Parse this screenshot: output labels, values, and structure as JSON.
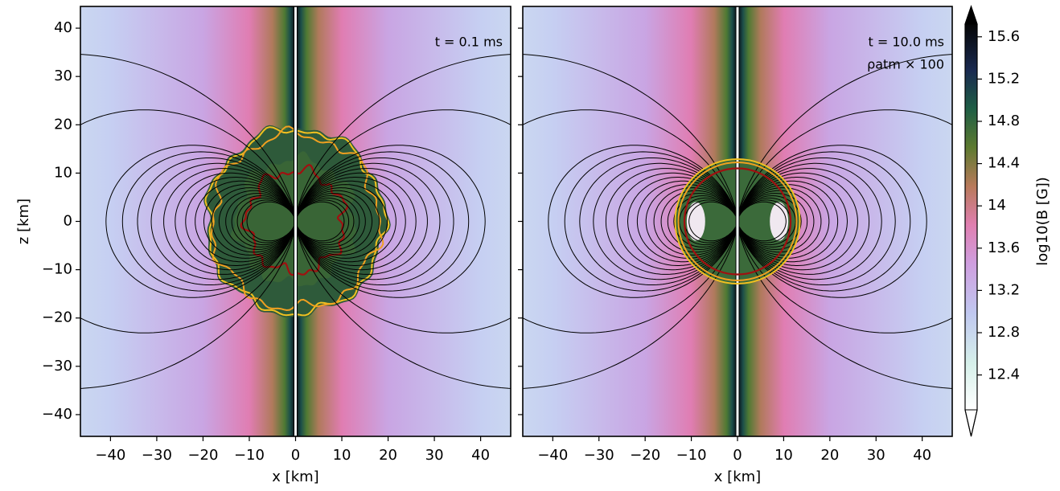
{
  "chart_data": [
    {
      "type": "heatmap",
      "xlabel": "x [km]",
      "ylabel": "z [km]",
      "annotations": [
        "t = 0.1 ms"
      ],
      "star": "irregular",
      "xlim": [
        -46.5,
        46.5
      ],
      "ylim": [
        -44.5,
        44.5
      ],
      "xticks": [
        {
          "value": -40,
          "label": "−40"
        },
        {
          "value": -30,
          "label": "−30"
        },
        {
          "value": -20,
          "label": "−20"
        },
        {
          "value": -10,
          "label": "−10"
        },
        0,
        10,
        20,
        30,
        40
      ],
      "yticks": [
        {
          "value": -40,
          "label": "−40"
        },
        {
          "value": -30,
          "label": "−30"
        },
        {
          "value": -20,
          "label": "−20"
        },
        {
          "value": -10,
          "label": "−10"
        },
        0,
        10,
        20,
        30,
        40
      ]
    },
    {
      "type": "heatmap",
      "xlabel": "x [km]",
      "annotations": [
        "t = 10.0 ms",
        "ρatm × 100"
      ],
      "star": "smooth",
      "xlim": [
        -46.5,
        46.5
      ],
      "ylim": [
        -44.5,
        44.5
      ],
      "xticks": [
        {
          "value": -40,
          "label": "−40"
        },
        {
          "value": -30,
          "label": "−30"
        },
        {
          "value": -20,
          "label": "−20"
        },
        {
          "value": -10,
          "label": "−10"
        },
        0,
        10,
        20,
        30,
        40
      ],
      "yticks": [
        -40,
        -30,
        -20,
        -10,
        0,
        10,
        20,
        30,
        40
      ]
    }
  ],
  "colorbar": {
    "label": "log10(B [G])",
    "clim": [
      12.07,
      15.72
    ],
    "ticks": [
      12.4,
      12.8,
      13.2,
      13.6,
      14.0,
      14.4,
      14.8,
      15.2,
      15.6
    ]
  }
}
